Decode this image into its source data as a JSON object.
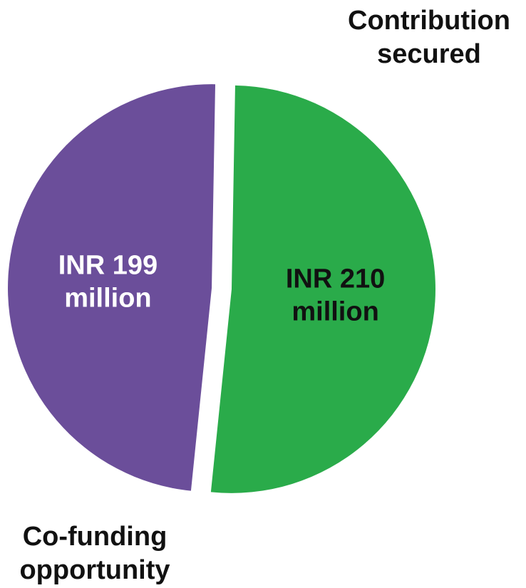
{
  "chart_data": {
    "type": "pie",
    "slices": [
      {
        "name": "Contribution secured",
        "value": 210,
        "label_line1": "INR 210",
        "label_line2": "million",
        "color": "#2aab4a",
        "label_color": "#111111",
        "legend_line1": "Contribution",
        "legend_line2": "secured"
      },
      {
        "name": "Co-funding opportunity",
        "value": 199,
        "label_line1": "INR 199",
        "label_line2": "million",
        "color": "#6b4e9a",
        "label_color": "#ffffff",
        "legend_line1": "Co-funding",
        "legend_line2": "opportunity"
      }
    ],
    "unit": "INR million",
    "exploded": true
  }
}
